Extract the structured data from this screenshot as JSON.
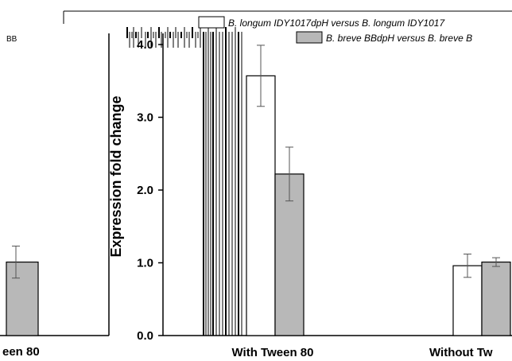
{
  "chart_data": {
    "type": "bar",
    "ylabel": "Expression fold change",
    "y_ticks": [
      "0.0",
      "1.0",
      "2.0",
      "3.0",
      "4.0"
    ],
    "ylim": [
      0,
      4.1
    ],
    "categories": [
      "With Tween 80",
      "Without Tw"
    ],
    "left_fragment": {
      "label": "een 80",
      "value": 1.01,
      "err": 0.22,
      "header": "BB"
    },
    "series": [
      {
        "name": "B. longum IDY1017dpH versus B. longum IDY1017",
        "color": "#ffffff",
        "values": [
          3.57,
          0.96
        ],
        "errors": [
          0.42,
          0.16
        ]
      },
      {
        "name": "B. breve BBdpH versus B. breve B",
        "color": "#b8b8b8",
        "values": [
          2.22,
          1.01
        ],
        "errors": [
          0.37,
          0.06
        ]
      }
    ],
    "legend_position": "top"
  }
}
